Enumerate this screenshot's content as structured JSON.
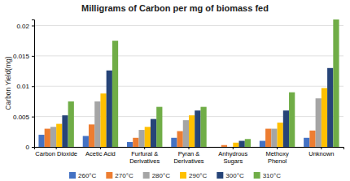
{
  "chart_data": {
    "type": "bar",
    "title": "Milligrams of Carbon per mg of biomass fed",
    "ylabel": "Carbon Yield(mg)",
    "categories": [
      "Carbon Dioxide",
      "Acetic Acid",
      "Furfural &\nDerivatives",
      "Pyran &\nDerivatives",
      "Anhydrous\nSugars",
      "Methoxy\nPhenol",
      "Unknown"
    ],
    "series": [
      {
        "name": "260°C",
        "color": "#4472c4",
        "values": [
          0.002,
          0.0018,
          0.0008,
          0.0015,
          0.0,
          0.001,
          0.0015
        ]
      },
      {
        "name": "270°C",
        "color": "#ed7d31",
        "values": [
          0.003,
          0.0037,
          0.0015,
          0.0026,
          0.0003,
          0.003,
          0.0027
        ]
      },
      {
        "name": "280°C",
        "color": "#a5a5a5",
        "values": [
          0.0033,
          0.0075,
          0.0028,
          0.0044,
          0.0,
          0.003,
          0.008
        ]
      },
      {
        "name": "290°C",
        "color": "#ffc000",
        "values": [
          0.0038,
          0.0088,
          0.0033,
          0.0052,
          0.0007,
          0.004,
          0.0097
        ]
      },
      {
        "name": "300°C",
        "color": "#264478",
        "values": [
          0.0052,
          0.0126,
          0.0046,
          0.006,
          0.001,
          0.006,
          0.013
        ]
      },
      {
        "name": "310°C",
        "color": "#70ad47",
        "values": [
          0.0075,
          0.0175,
          0.0066,
          0.0066,
          0.0013,
          0.009,
          0.021
        ]
      }
    ],
    "ylim": [
      0,
      0.021
    ],
    "yticks": [
      0,
      0.005,
      0.01,
      0.015,
      0.02
    ],
    "grid": true,
    "legend": "bottom"
  }
}
